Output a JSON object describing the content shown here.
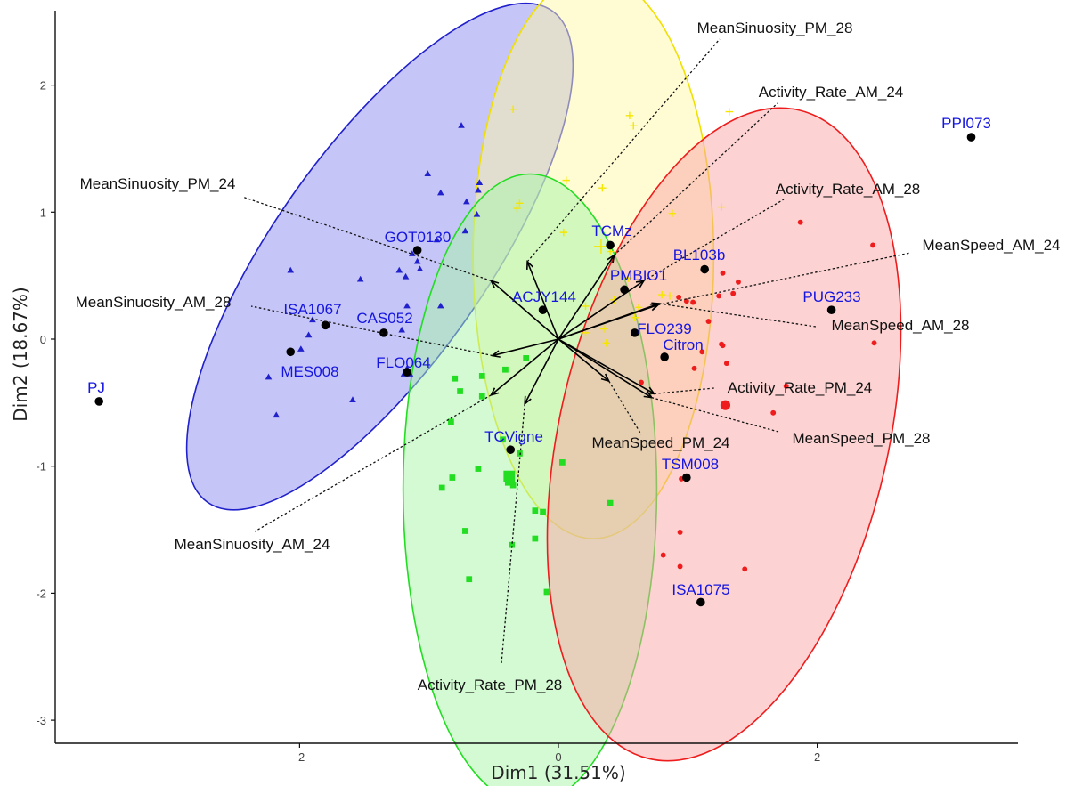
{
  "chart_data": {
    "type": "scatter",
    "xlabel": "Dim1 (31.51%)",
    "ylabel": "Dim2 (18.67%)",
    "xlim": [
      -3.9,
      3.5
    ],
    "ylim": [
      -3.1,
      2.65
    ],
    "x_ticks": [
      -2,
      0,
      2
    ],
    "y_ticks": [
      -3,
      -2,
      -1,
      0,
      1,
      2
    ],
    "grid": false,
    "colors": {
      "blue": "#2020cc",
      "yellow": "#f5e600",
      "green": "#22dd22",
      "red": "#ee1c1c",
      "arrow": "#000000",
      "label_blue": "#1515e0"
    },
    "ellipses": [
      {
        "group": "blue",
        "cx": -1.38,
        "cy": 0.65,
        "rx": 2.32,
        "ry": 0.84,
        "angle": 55,
        "fill": "#8c8cf0",
        "stroke": "#2020cc"
      },
      {
        "group": "yellow",
        "cx": 0.27,
        "cy": 0.65,
        "rx": 0.93,
        "ry": 2.22,
        "angle": 0,
        "fill": "#fff7a8",
        "stroke": "#f0e000"
      },
      {
        "group": "green",
        "cx": -0.22,
        "cy": -1.18,
        "rx": 0.98,
        "ry": 2.48,
        "angle": 0,
        "fill": "#a8f5a8",
        "stroke": "#22dd22"
      },
      {
        "group": "red",
        "cx": 1.28,
        "cy": -0.75,
        "rx": 1.27,
        "ry": 2.62,
        "angle": -13,
        "fill": "#f9a6a6",
        "stroke": "#ee1c1c"
      }
    ],
    "group_points": [
      {
        "group": "blue",
        "marker": "triangle",
        "points": [
          [
            -0.75,
            1.68
          ],
          [
            -1.01,
            1.3
          ],
          [
            -0.61,
            1.23
          ],
          [
            -0.62,
            1.17
          ],
          [
            -0.91,
            1.15
          ],
          [
            -0.71,
            1.08
          ],
          [
            -0.63,
            0.98
          ],
          [
            -0.72,
            0.85
          ],
          [
            -0.94,
            0.78
          ],
          [
            -1.23,
            0.54
          ],
          [
            -1.13,
            0.67
          ],
          [
            -1.09,
            0.61
          ],
          [
            -1.07,
            0.55
          ],
          [
            -1.18,
            0.49
          ],
          [
            -2.07,
            0.54
          ],
          [
            -1.53,
            0.47
          ],
          [
            -1.17,
            0.26
          ],
          [
            -0.91,
            0.26
          ],
          [
            -1.21,
            0.07
          ],
          [
            -1.9,
            0.15
          ],
          [
            -1.93,
            0.03
          ],
          [
            -1.99,
            -0.08
          ],
          [
            -2.24,
            -0.3
          ],
          [
            -1.59,
            -0.48
          ],
          [
            -2.18,
            -0.6
          ]
        ]
      },
      {
        "group": "yellow",
        "marker": "plus",
        "points": [
          [
            -0.35,
            1.81
          ],
          [
            0.55,
            1.76
          ],
          [
            0.58,
            1.68
          ],
          [
            1.32,
            1.79
          ],
          [
            0.06,
            1.25
          ],
          [
            -0.3,
            1.07
          ],
          [
            -0.32,
            1.03
          ],
          [
            0.34,
            1.19
          ],
          [
            0.88,
            0.99
          ],
          [
            1.26,
            1.04
          ],
          [
            0.04,
            0.84
          ],
          [
            0.4,
            0.69
          ],
          [
            0.54,
            0.48
          ],
          [
            0.8,
            0.35
          ],
          [
            0.86,
            0.34
          ],
          [
            0.21,
            0.26
          ],
          [
            0.43,
            0.31
          ],
          [
            0.62,
            0.25
          ],
          [
            0.59,
            0.17
          ],
          [
            0.35,
            0.08
          ],
          [
            0.21,
            0.05
          ],
          [
            0.37,
            -0.03
          ]
        ]
      },
      {
        "group": "green",
        "marker": "square",
        "points": [
          [
            -0.25,
            -0.15
          ],
          [
            -0.8,
            -0.31
          ],
          [
            -0.59,
            -0.29
          ],
          [
            -0.41,
            -0.24
          ],
          [
            -0.76,
            -0.41
          ],
          [
            -0.59,
            -0.45
          ],
          [
            -0.83,
            -0.65
          ],
          [
            -0.43,
            -0.79
          ],
          [
            -0.3,
            -0.9
          ],
          [
            0.03,
            -0.97
          ],
          [
            -0.62,
            -1.02
          ],
          [
            -0.82,
            -1.09
          ],
          [
            -0.39,
            -1.08
          ],
          [
            -0.39,
            -1.13
          ],
          [
            -0.35,
            -1.15
          ],
          [
            -0.9,
            -1.17
          ],
          [
            -0.18,
            -1.35
          ],
          [
            -0.12,
            -1.36
          ],
          [
            0.4,
            -1.29
          ],
          [
            -0.72,
            -1.51
          ],
          [
            -0.18,
            -1.57
          ],
          [
            -0.36,
            -1.62
          ],
          [
            -0.69,
            -1.89
          ],
          [
            -0.09,
            -1.99
          ]
        ]
      },
      {
        "group": "red",
        "marker": "circle",
        "points": [
          [
            1.27,
            0.52
          ],
          [
            1.39,
            0.45
          ],
          [
            1.35,
            0.36
          ],
          [
            0.99,
            0.3
          ],
          [
            1.04,
            0.29
          ],
          [
            0.93,
            0.33
          ],
          [
            1.87,
            0.92
          ],
          [
            2.43,
            0.74
          ],
          [
            1.16,
            0.14
          ],
          [
            1.24,
            0.34
          ],
          [
            1.26,
            -0.04
          ],
          [
            1.27,
            -0.05
          ],
          [
            1.11,
            -0.1
          ],
          [
            1.05,
            -0.23
          ],
          [
            1.3,
            -0.19
          ],
          [
            1.76,
            -0.37
          ],
          [
            0.64,
            -0.34
          ],
          [
            1.66,
            -0.58
          ],
          [
            2.44,
            -0.03
          ],
          [
            0.95,
            -1.1
          ],
          [
            0.94,
            -1.52
          ],
          [
            0.81,
            -1.7
          ],
          [
            0.94,
            -1.79
          ],
          [
            1.44,
            -1.81
          ]
        ]
      }
    ],
    "group_centers": [
      {
        "group": "blue",
        "x": -1.17,
        "y": -0.26
      },
      {
        "group": "yellow",
        "x": 0.33,
        "y": 0.73
      },
      {
        "group": "green",
        "x": -0.38,
        "y": -1.08
      },
      {
        "group": "red",
        "x": 1.29,
        "y": -0.52
      }
    ],
    "individuals": [
      {
        "name": "PJ",
        "x": -3.55,
        "y": -0.49
      },
      {
        "name": "PPI073",
        "x": 3.19,
        "y": 1.59
      },
      {
        "name": "GOT0130",
        "x": -1.09,
        "y": 0.7
      },
      {
        "name": "TCMz",
        "x": 0.4,
        "y": 0.74
      },
      {
        "name": "BL103b",
        "x": 1.13,
        "y": 0.55
      },
      {
        "name": "PMBIO1",
        "x": 0.51,
        "y": 0.39
      },
      {
        "name": "ACJY144",
        "x": -0.12,
        "y": 0.23
      },
      {
        "name": "PUG233",
        "x": 2.11,
        "y": 0.23
      },
      {
        "name": "ISA1067",
        "x": -1.8,
        "y": 0.11
      },
      {
        "name": "CAS052",
        "x": -1.35,
        "y": 0.05
      },
      {
        "name": "FLO239",
        "x": 0.59,
        "y": 0.05
      },
      {
        "name": "Citron",
        "x": 0.82,
        "y": -0.14
      },
      {
        "name": "MES008",
        "x": -2.07,
        "y": -0.1
      },
      {
        "name": "FLO064",
        "x": -1.17,
        "y": -0.26
      },
      {
        "name": "TCVigne",
        "x": -0.37,
        "y": -0.87
      },
      {
        "name": "TSM008",
        "x": 0.99,
        "y": -1.09
      },
      {
        "name": "ISA1075",
        "x": 1.1,
        "y": -2.07
      }
    ],
    "variables": [
      {
        "name": "MeanSinuosity_PM_28",
        "x": -0.24,
        "y": 0.61
      },
      {
        "name": "Activity_Rate_AM_24",
        "x": 0.43,
        "y": 0.66
      },
      {
        "name": "Activity_Rate_AM_28",
        "x": 0.66,
        "y": 0.46
      },
      {
        "name": "MeanSpeed_AM_24",
        "x": 0.77,
        "y": 0.27
      },
      {
        "name": "MeanSpeed_AM_28",
        "x": 0.78,
        "y": 0.28
      },
      {
        "name": "Activity_Rate_PM_24",
        "x": 0.74,
        "y": -0.43
      },
      {
        "name": "MeanSpeed_PM_28",
        "x": 0.72,
        "y": -0.46
      },
      {
        "name": "MeanSpeed_PM_24",
        "x": 0.39,
        "y": -0.33
      },
      {
        "name": "Activity_Rate_PM_28",
        "x": -0.26,
        "y": -0.51
      },
      {
        "name": "MeanSinuosity_AM_24",
        "x": -0.52,
        "y": -0.44
      },
      {
        "name": "MeanSinuosity_AM_28",
        "x": -0.51,
        "y": -0.13
      },
      {
        "name": "MeanSinuosity_PM_24",
        "x": -0.52,
        "y": 0.46
      }
    ]
  }
}
